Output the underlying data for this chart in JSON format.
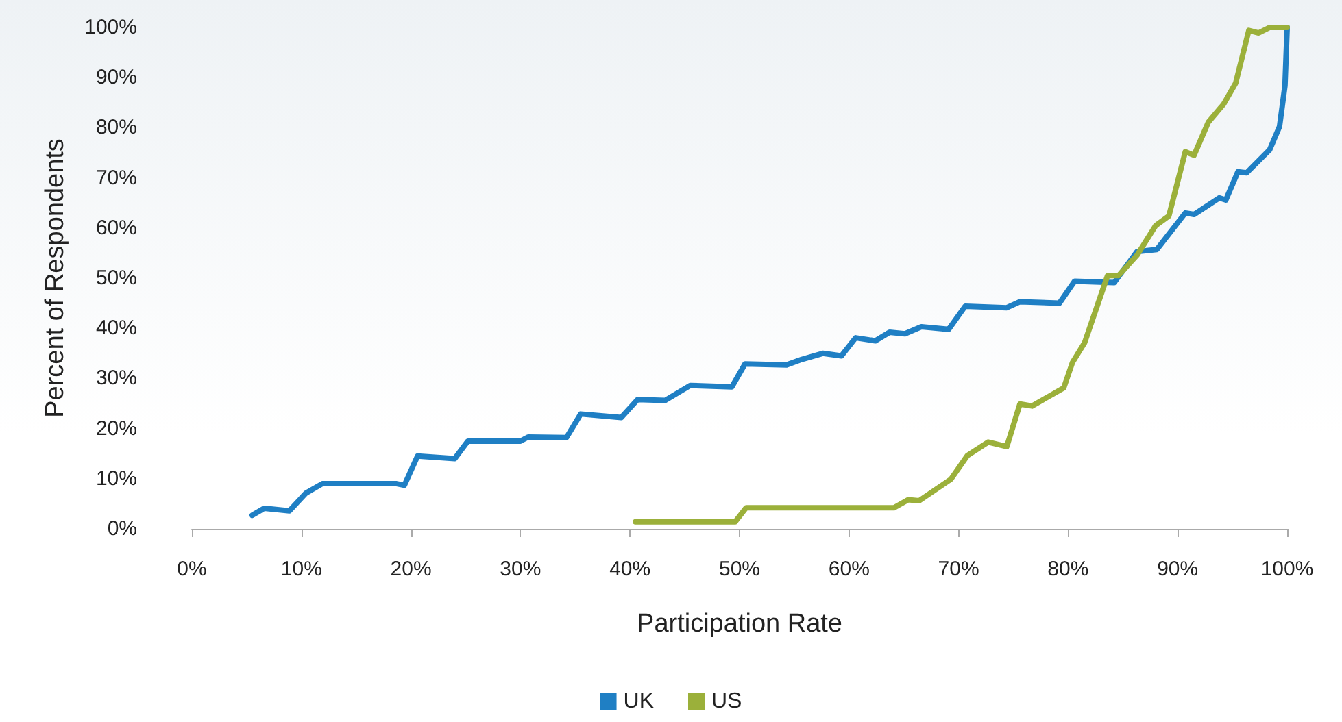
{
  "chart_data": {
    "type": "line",
    "xlabel": "Participation Rate",
    "ylabel": "Percent of Respondents",
    "xlim": [
      0,
      100
    ],
    "ylim": [
      0,
      100
    ],
    "xticks": [
      {
        "value": 0,
        "label": "0%"
      },
      {
        "value": 10,
        "label": "10%"
      },
      {
        "value": 20,
        "label": "20%"
      },
      {
        "value": 30,
        "label": "30%"
      },
      {
        "value": 40,
        "label": "40%"
      },
      {
        "value": 50,
        "label": "50%"
      },
      {
        "value": 60,
        "label": "60%"
      },
      {
        "value": 70,
        "label": "70%"
      },
      {
        "value": 80,
        "label": "80%"
      },
      {
        "value": 90,
        "label": "90%"
      },
      {
        "value": 100,
        "label": "100%"
      }
    ],
    "yticks": [
      {
        "value": 0,
        "label": "0%"
      },
      {
        "value": 10,
        "label": "10%"
      },
      {
        "value": 20,
        "label": "20%"
      },
      {
        "value": 30,
        "label": "30%"
      },
      {
        "value": 40,
        "label": "40%"
      },
      {
        "value": 50,
        "label": "50%"
      },
      {
        "value": 60,
        "label": "60%"
      },
      {
        "value": 70,
        "label": "70%"
      },
      {
        "value": 80,
        "label": "80%"
      },
      {
        "value": 90,
        "label": "90%"
      },
      {
        "value": 100,
        "label": "100%"
      }
    ],
    "grid": false,
    "legend": "bottom",
    "marker": "none",
    "line_style": "solid",
    "series": [
      {
        "name": "UK",
        "color": "#1f7fc4",
        "x": [
          5.5,
          6.6,
          8.9,
          10.4,
          11.9,
          18.7,
          19.4,
          20.6,
          24,
          25.2,
          30,
          30.7,
          34.2,
          35.5,
          39.2,
          40.7,
          43.2,
          45.5,
          49.3,
          50.5,
          54.3,
          55.7,
          57.6,
          59.3,
          60.6,
          62.4,
          63.7,
          65.1,
          66.6,
          69.1,
          70.6,
          74.4,
          75.6,
          79.2,
          80.6,
          84.2,
          86.3,
          88.1,
          90.7,
          91.5,
          93.8,
          94.4,
          95.5,
          96.3,
          98.4,
          99.3,
          99.8,
          100
        ],
        "values": [
          2.7,
          4.1,
          3.6,
          7.1,
          9,
          9,
          8.7,
          14.5,
          14,
          17.5,
          17.5,
          18.3,
          18.2,
          22.9,
          22.2,
          25.8,
          25.6,
          28.6,
          28.3,
          32.9,
          32.7,
          33.8,
          35,
          34.5,
          38.1,
          37.5,
          39.2,
          38.9,
          40.3,
          39.8,
          44.4,
          44.1,
          45.3,
          45,
          49.4,
          49.1,
          55.3,
          55.7,
          63,
          62.7,
          66,
          65.6,
          71.2,
          71,
          75.6,
          80.2,
          88.4,
          100
        ]
      },
      {
        "name": "US",
        "color": "#9bb03a",
        "x": [
          40.5,
          49.6,
          50.6,
          64.1,
          65.4,
          66.4,
          69.3,
          70.8,
          72.7,
          74.4,
          75.6,
          76.7,
          79.6,
          80.4,
          81.5,
          83.6,
          84.6,
          86.3,
          88,
          89.2,
          90.7,
          91.5,
          92.8,
          94.2,
          95.3,
          96.5,
          97.4,
          98.4,
          100
        ],
        "values": [
          1.4,
          1.4,
          4.2,
          4.2,
          5.8,
          5.6,
          9.9,
          14.6,
          17.3,
          16.4,
          24.9,
          24.5,
          28.1,
          33.2,
          37.1,
          50.5,
          50.5,
          54.6,
          60.5,
          62.4,
          75.2,
          74.5,
          81.1,
          84.7,
          88.9,
          99.4,
          98.9,
          100,
          100
        ]
      }
    ]
  }
}
